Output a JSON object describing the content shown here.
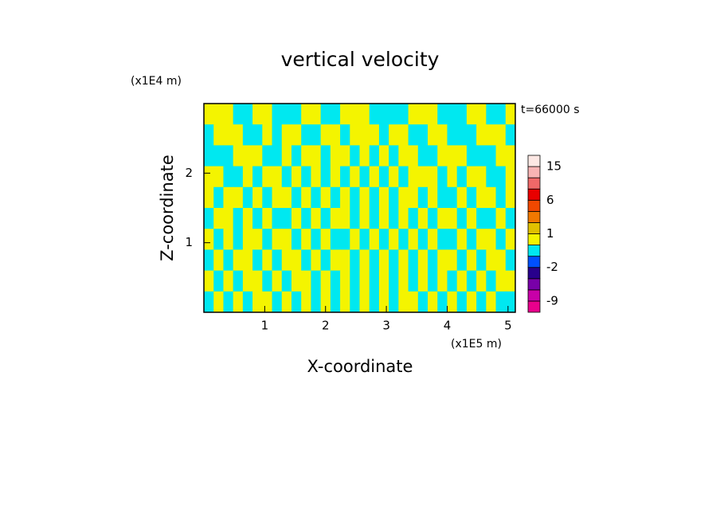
{
  "chart_data": {
    "type": "contour",
    "title": "vertical velocity",
    "xlabel": "X-coordinate",
    "ylabel": "Z-coordinate",
    "xunit": "(x1E5 m)",
    "yunit": "(x1E4 m)",
    "annotation": "t=66000 s",
    "xlim": [
      0,
      5.12
    ],
    "ylim": [
      0,
      3.0
    ],
    "xticks": [
      1,
      2,
      3,
      4,
      5
    ],
    "yticks": [
      1,
      2
    ],
    "z": [
      [
        0.5,
        0.5,
        0.5,
        -0.5,
        -0.5,
        0.5,
        0.5,
        -0.5,
        -0.5,
        -0.5,
        0.5,
        0.5,
        -0.5,
        -0.5,
        0.5,
        0.5,
        0.5,
        -0.5,
        -0.5,
        -0.5,
        -0.5,
        0.5,
        0.5,
        0.5,
        -0.5,
        -0.5,
        -0.5,
        0.5,
        0.5,
        -0.5,
        -0.5,
        0.5
      ],
      [
        -0.5,
        0.5,
        0.5,
        0.5,
        -0.5,
        -0.5,
        0.5,
        -0.5,
        0.5,
        0.5,
        -0.5,
        -0.5,
        0.5,
        0.5,
        -0.5,
        0.5,
        0.5,
        0.5,
        -0.5,
        0.5,
        0.5,
        -0.5,
        -0.5,
        0.5,
        0.5,
        -0.5,
        -0.5,
        -0.5,
        0.5,
        0.5,
        0.5,
        -0.5
      ],
      [
        -0.5,
        -0.5,
        -0.5,
        0.5,
        0.5,
        0.5,
        -0.5,
        -0.5,
        0.5,
        -0.5,
        0.5,
        0.5,
        -0.5,
        0.5,
        0.5,
        -0.5,
        0.5,
        -0.5,
        0.5,
        -0.5,
        0.5,
        0.5,
        -0.5,
        -0.5,
        0.5,
        0.5,
        0.5,
        -0.5,
        -0.5,
        -0.5,
        0.5,
        0.5
      ],
      [
        0.5,
        0.5,
        -0.5,
        -0.5,
        0.5,
        -0.5,
        0.5,
        0.5,
        -0.5,
        0.5,
        -0.5,
        0.5,
        -0.5,
        0.5,
        -0.5,
        0.5,
        -0.5,
        0.5,
        -0.5,
        0.5,
        -0.5,
        0.5,
        0.5,
        0.5,
        -0.5,
        0.5,
        -0.5,
        0.5,
        0.5,
        -0.5,
        -0.5,
        0.5
      ],
      [
        0.5,
        -0.5,
        0.5,
        0.5,
        -0.5,
        0.5,
        -0.5,
        0.5,
        0.5,
        -0.5,
        0.5,
        -0.5,
        0.5,
        -0.5,
        0.5,
        -0.5,
        0.5,
        -0.5,
        0.5,
        -0.5,
        0.5,
        0.5,
        -0.5,
        0.5,
        -0.5,
        -0.5,
        0.5,
        -0.5,
        0.5,
        0.5,
        -0.5,
        0.5
      ],
      [
        -0.5,
        0.5,
        0.5,
        -0.5,
        0.5,
        -0.5,
        0.5,
        -0.5,
        -0.5,
        0.5,
        -0.5,
        0.5,
        -0.5,
        0.5,
        0.5,
        -0.5,
        0.5,
        -0.5,
        0.5,
        -0.5,
        0.5,
        -0.5,
        0.5,
        -0.5,
        0.5,
        0.5,
        -0.5,
        0.5,
        -0.5,
        -0.5,
        0.5,
        -0.5
      ],
      [
        0.5,
        -0.5,
        0.5,
        -0.5,
        0.5,
        0.5,
        -0.5,
        0.5,
        0.5,
        -0.5,
        0.5,
        -0.5,
        0.5,
        -0.5,
        -0.5,
        0.5,
        -0.5,
        0.5,
        -0.5,
        0.5,
        -0.5,
        0.5,
        -0.5,
        0.5,
        -0.5,
        -0.5,
        0.5,
        -0.5,
        0.5,
        0.5,
        -0.5,
        0.5
      ],
      [
        -0.5,
        0.5,
        -0.5,
        0.5,
        0.5,
        -0.5,
        0.5,
        -0.5,
        0.5,
        0.5,
        -0.5,
        0.5,
        -0.5,
        0.5,
        0.5,
        -0.5,
        0.5,
        -0.5,
        0.5,
        -0.5,
        0.5,
        -0.5,
        0.5,
        -0.5,
        0.5,
        0.5,
        -0.5,
        0.5,
        -0.5,
        0.5,
        0.5,
        -0.5
      ],
      [
        0.5,
        -0.5,
        0.5,
        -0.5,
        0.5,
        0.5,
        -0.5,
        0.5,
        -0.5,
        0.5,
        0.5,
        -0.5,
        0.5,
        -0.5,
        0.5,
        -0.5,
        0.5,
        -0.5,
        0.5,
        -0.5,
        0.5,
        -0.5,
        0.5,
        -0.5,
        0.5,
        -0.5,
        0.5,
        -0.5,
        0.5,
        -0.5,
        0.5,
        0.5
      ],
      [
        -0.5,
        0.5,
        -0.5,
        0.5,
        -0.5,
        0.5,
        0.5,
        -0.5,
        0.5,
        -0.5,
        0.5,
        -0.5,
        0.5,
        -0.5,
        0.5,
        -0.5,
        0.5,
        -0.5,
        0.5,
        -0.5,
        0.5,
        0.5,
        -0.5,
        0.5,
        -0.5,
        0.5,
        -0.5,
        0.5,
        -0.5,
        0.5,
        -0.5,
        -0.5
      ]
    ],
    "colorbar": {
      "levels": [
        -12,
        -9,
        -6,
        -4,
        -2,
        -1,
        0,
        1,
        2,
        4,
        6,
        9,
        12,
        15,
        20
      ],
      "colors": [
        "#e8008c",
        "#c800a8",
        "#7800a8",
        "#28008c",
        "#0050ff",
        "#00e8f0",
        "#f4f400",
        "#e0c000",
        "#f07800",
        "#f04800",
        "#e80000",
        "#f06868",
        "#f8b4b4",
        "#fde8e4"
      ],
      "ticks": [
        15,
        6,
        1,
        -2,
        -9
      ]
    }
  }
}
